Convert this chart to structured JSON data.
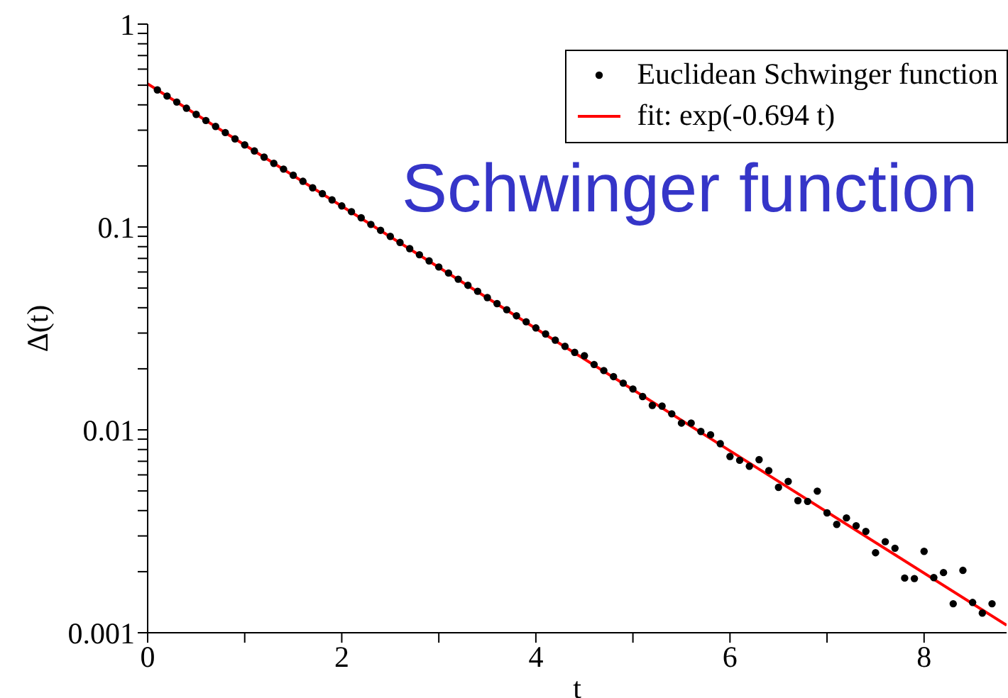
{
  "chart_data": {
    "type": "scatter",
    "annotations": [
      "Schwinger function"
    ],
    "xlabel": "t",
    "ylabel": "Δ(t)",
    "x": [
      0.1,
      0.2,
      0.3,
      0.4,
      0.5,
      0.6,
      0.7,
      0.8,
      0.9,
      1.0,
      1.1,
      1.2,
      1.3,
      1.4,
      1.5,
      1.6,
      1.7,
      1.8,
      1.9,
      2.0,
      2.1,
      2.2,
      2.3,
      2.4,
      2.5,
      2.6,
      2.7,
      2.8,
      2.9,
      3.0,
      3.1,
      3.2,
      3.3,
      3.4,
      3.5,
      3.6,
      3.7,
      3.8,
      3.9,
      4.0,
      4.1,
      4.2,
      4.3,
      4.4,
      4.5,
      4.6,
      4.7,
      4.8,
      4.9,
      5.0,
      5.1,
      5.2,
      5.3,
      5.4,
      5.5,
      5.6,
      5.7,
      5.8,
      5.9,
      6.0,
      6.1,
      6.2,
      6.3,
      6.4,
      6.5,
      6.6,
      6.7,
      6.8,
      6.9,
      7.0,
      7.1,
      7.2,
      7.3,
      7.4,
      7.5,
      7.6,
      7.7,
      7.8,
      7.9,
      8.0,
      8.1,
      8.2,
      8.3,
      8.4,
      8.5,
      8.6,
      8.7
    ],
    "series": [
      {
        "name": "Euclidean Schwinger function",
        "marker": "circle",
        "color": "#000000",
        "values": [
          0.474,
          0.442,
          0.413,
          0.385,
          0.359,
          0.335,
          0.313,
          0.292,
          0.272,
          0.254,
          0.237,
          0.221,
          0.206,
          0.193,
          0.18,
          0.168,
          0.156,
          0.146,
          0.136,
          0.127,
          0.119,
          0.111,
          0.103,
          0.0963,
          0.0899,
          0.0839,
          0.0782,
          0.073,
          0.0681,
          0.0635,
          0.0593,
          0.0553,
          0.0516,
          0.0482,
          0.0449,
          0.0419,
          0.0391,
          0.0365,
          0.0341,
          0.0318,
          0.0297,
          0.0277,
          0.0258,
          0.0241,
          0.0232,
          0.021,
          0.0196,
          0.0183,
          0.017,
          0.0159,
          0.0146,
          0.0132,
          0.0131,
          0.012,
          0.0108,
          0.0108,
          0.00982,
          0.00946,
          0.00855,
          0.00739,
          0.00708,
          0.00662,
          0.00713,
          0.0063,
          0.00521,
          0.00557,
          0.00448,
          0.00444,
          0.00499,
          0.0039,
          0.00342,
          0.00368,
          0.00337,
          0.00316,
          0.00248,
          0.00281,
          0.00261,
          0.00186,
          0.00185,
          0.00252,
          0.00187,
          0.00198,
          0.00139,
          0.00203,
          0.00141,
          0.00125,
          0.00139
        ]
      },
      {
        "name": "fit: exp(-0.694 t)",
        "type": "line",
        "marker": "none",
        "color": "#ff0000",
        "x": [
          0,
          8.85
        ],
        "values": [
          0.508,
          0.00109
        ]
      }
    ],
    "xlim": [
      0,
      8.85
    ],
    "xticks": [
      0,
      {
        "value": 1,
        "label": null
      },
      2,
      {
        "value": 3,
        "label": null
      },
      4,
      {
        "value": 5,
        "label": null
      },
      6,
      {
        "value": 7,
        "label": null
      },
      8
    ],
    "log": "y",
    "ylim": [
      0.001,
      1
    ],
    "yticks": [
      {
        "value": 0.001,
        "label": "0.001"
      },
      {
        "value": 0.002,
        "label": null
      },
      {
        "value": 0.003,
        "label": null
      },
      {
        "value": 0.004,
        "label": null
      },
      {
        "value": 0.005,
        "label": null
      },
      {
        "value": 0.006,
        "label": null
      },
      {
        "value": 0.007,
        "label": null
      },
      {
        "value": 0.008,
        "label": null
      },
      {
        "value": 0.009,
        "label": null
      },
      {
        "value": 0.01,
        "label": "0.01"
      },
      {
        "value": 0.02,
        "label": null
      },
      {
        "value": 0.03,
        "label": null
      },
      {
        "value": 0.04,
        "label": null
      },
      {
        "value": 0.05,
        "label": null
      },
      {
        "value": 0.06,
        "label": null
      },
      {
        "value": 0.07,
        "label": null
      },
      {
        "value": 0.08,
        "label": null
      },
      {
        "value": 0.09,
        "label": null
      },
      {
        "value": 0.1,
        "label": "0.1"
      },
      {
        "value": 0.2,
        "label": null
      },
      {
        "value": 0.3,
        "label": null
      },
      {
        "value": 0.4,
        "label": null
      },
      {
        "value": 0.5,
        "label": null
      },
      {
        "value": 0.6,
        "label": null
      },
      {
        "value": 0.7,
        "label": null
      },
      {
        "value": 0.8,
        "label": null
      },
      {
        "value": 0.9,
        "label": null
      },
      {
        "value": 1,
        "label": "1"
      }
    ],
    "grid": false,
    "legend": "top right"
  }
}
